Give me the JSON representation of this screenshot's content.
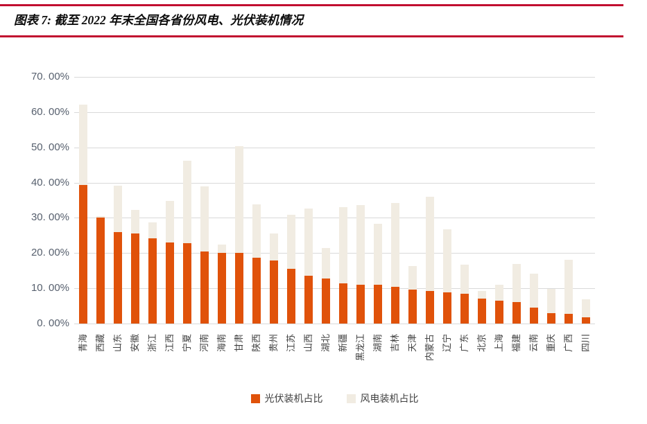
{
  "header": {
    "title": "图表 7: 截至 2022 年末全国各省份风电、光伏装机情况"
  },
  "colors": {
    "accent_rule": "#C10D2F",
    "pv_bar": "#E0520A",
    "wind_bar": "#F1ECE2",
    "gridline": "#D9D9D9",
    "y_axis_text": "#57606E",
    "x_axis_text": "#3F3F3F",
    "legend_text": "#3F3F3F",
    "title_text": "#0D0D0D"
  },
  "legend": {
    "items": [
      {
        "label": "光伏装机占比",
        "color": "#E0520A"
      },
      {
        "label": "风电装机占比",
        "color": "#F1ECE2"
      }
    ]
  },
  "chart_data": {
    "type": "bar",
    "overlapped_bars": true,
    "title": "截至2022年末全国各省份风电、光伏装机情况",
    "xlabel": "",
    "ylabel": "",
    "ylim": [
      0,
      70
    ],
    "grid": true,
    "legend_position": "bottom",
    "y_ticks": [
      0,
      10,
      20,
      30,
      40,
      50,
      60,
      70
    ],
    "y_tick_labels": [
      "0. 00%",
      "10. 00%",
      "20. 00%",
      "30. 00%",
      "40. 00%",
      "50. 00%",
      "60. 00%",
      "70. 00%"
    ],
    "categories": [
      "青海",
      "西藏",
      "山东",
      "安徽",
      "浙江",
      "江西",
      "宁夏",
      "河南",
      "海南",
      "甘肃",
      "陕西",
      "贵州",
      "江苏",
      "山西",
      "湖北",
      "新疆",
      "黑龙江",
      "湖南",
      "吉林",
      "天津",
      "内蒙古",
      "辽宁",
      "广东",
      "北京",
      "上海",
      "福建",
      "云南",
      "重庆",
      "广西",
      "四川"
    ],
    "series": [
      {
        "name": "光伏装机占比",
        "color": "#E0520A",
        "values": [
          39.4,
          30.1,
          26.0,
          25.5,
          24.2,
          23.0,
          22.9,
          20.5,
          20.1,
          20.0,
          18.7,
          17.8,
          15.5,
          13.5,
          12.8,
          11.4,
          11.1,
          11.0,
          10.4,
          9.6,
          9.2,
          8.8,
          8.5,
          7.0,
          6.5,
          6.0,
          4.6,
          2.9,
          2.8,
          1.7
        ]
      },
      {
        "name": "风电装机占比",
        "color": "#F1ECE2",
        "values": [
          62.2,
          30.4,
          39.2,
          32.3,
          28.7,
          34.8,
          46.3,
          39.0,
          22.5,
          50.4,
          33.8,
          25.5,
          30.8,
          32.6,
          21.5,
          33.0,
          33.7,
          28.3,
          34.3,
          16.3,
          35.9,
          26.8,
          16.8,
          9.3,
          11.1,
          17.0,
          14.2,
          9.8,
          18.0,
          6.8
        ]
      }
    ]
  }
}
